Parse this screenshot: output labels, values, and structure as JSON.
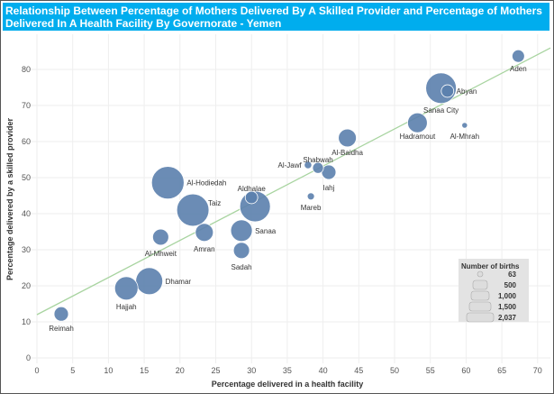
{
  "chart_data": {
    "type": "scatter",
    "title": "Relationship Between Percentage of Mothers Delivered By A Skilled Provider and Percentage of Mothers Delivered In A Health Facility By Governorate - Yemen",
    "xlabel": "Percentage delivered in a health facility",
    "ylabel": "Percentage delivered by a skilled provider",
    "xlim": [
      0,
      70
    ],
    "ylim": [
      0,
      85
    ],
    "xticks": [
      0,
      5,
      10,
      15,
      20,
      25,
      30,
      35,
      40,
      45,
      50,
      55,
      60,
      65,
      70
    ],
    "yticks": [
      0,
      10,
      20,
      30,
      40,
      50,
      60,
      70,
      80
    ],
    "grid": true,
    "size_legend": {
      "title": "Number of births",
      "values": [
        "63",
        "500",
        "1,000",
        "1,500",
        "2,037"
      ],
      "placement": "bottom-right"
    },
    "trendline": {
      "intercept": 12,
      "slope": 1.03,
      "color": "#a8d4a0"
    },
    "point_color": "#5b7fad",
    "points": [
      {
        "label": "Aden",
        "x": 67.3,
        "y": 83.7,
        "births": 300
      },
      {
        "label": "Sanaa City",
        "x": 56.5,
        "y": 74.8,
        "births": 1800
      },
      {
        "label": "Abyan",
        "x": 57.4,
        "y": 74.0,
        "births": 300
      },
      {
        "label": "Hadramout",
        "x": 53.2,
        "y": 65.2,
        "births": 750
      },
      {
        "label": "Al-Mhrah",
        "x": 59.8,
        "y": 64.5,
        "births": 63
      },
      {
        "label": "Al-Baidha",
        "x": 43.4,
        "y": 61.0,
        "births": 620
      },
      {
        "label": "Al-Jawf",
        "x": 37.9,
        "y": 53.5,
        "births": 110
      },
      {
        "label": "Shabwah",
        "x": 39.3,
        "y": 52.7,
        "births": 230
      },
      {
        "label": "Iahj",
        "x": 40.8,
        "y": 51.5,
        "births": 400
      },
      {
        "label": "Mareb",
        "x": 38.3,
        "y": 44.8,
        "births": 100
      },
      {
        "label": "Al-Hodiedah",
        "x": 18.3,
        "y": 48.6,
        "births": 2037
      },
      {
        "label": "Taiz",
        "x": 21.8,
        "y": 41.0,
        "births": 2000
      },
      {
        "label": "",
        "x": 30.5,
        "y": 42.0,
        "births": 1800
      },
      {
        "label": "Aldhalae",
        "x": 30.0,
        "y": 44.5,
        "births": 300
      },
      {
        "label": "Amran",
        "x": 23.4,
        "y": 34.8,
        "births": 620
      },
      {
        "label": "Sanaa",
        "x": 28.6,
        "y": 35.3,
        "births": 900
      },
      {
        "label": "Sadah",
        "x": 28.6,
        "y": 29.8,
        "births": 500
      },
      {
        "label": "Al-Mhweit",
        "x": 17.3,
        "y": 33.5,
        "births": 500
      },
      {
        "label": "Dhamar",
        "x": 15.7,
        "y": 21.3,
        "births": 1400
      },
      {
        "label": "Hajjah",
        "x": 12.5,
        "y": 19.3,
        "births": 1050
      },
      {
        "label": "Reimah",
        "x": 3.4,
        "y": 12.2,
        "births": 400
      }
    ]
  }
}
